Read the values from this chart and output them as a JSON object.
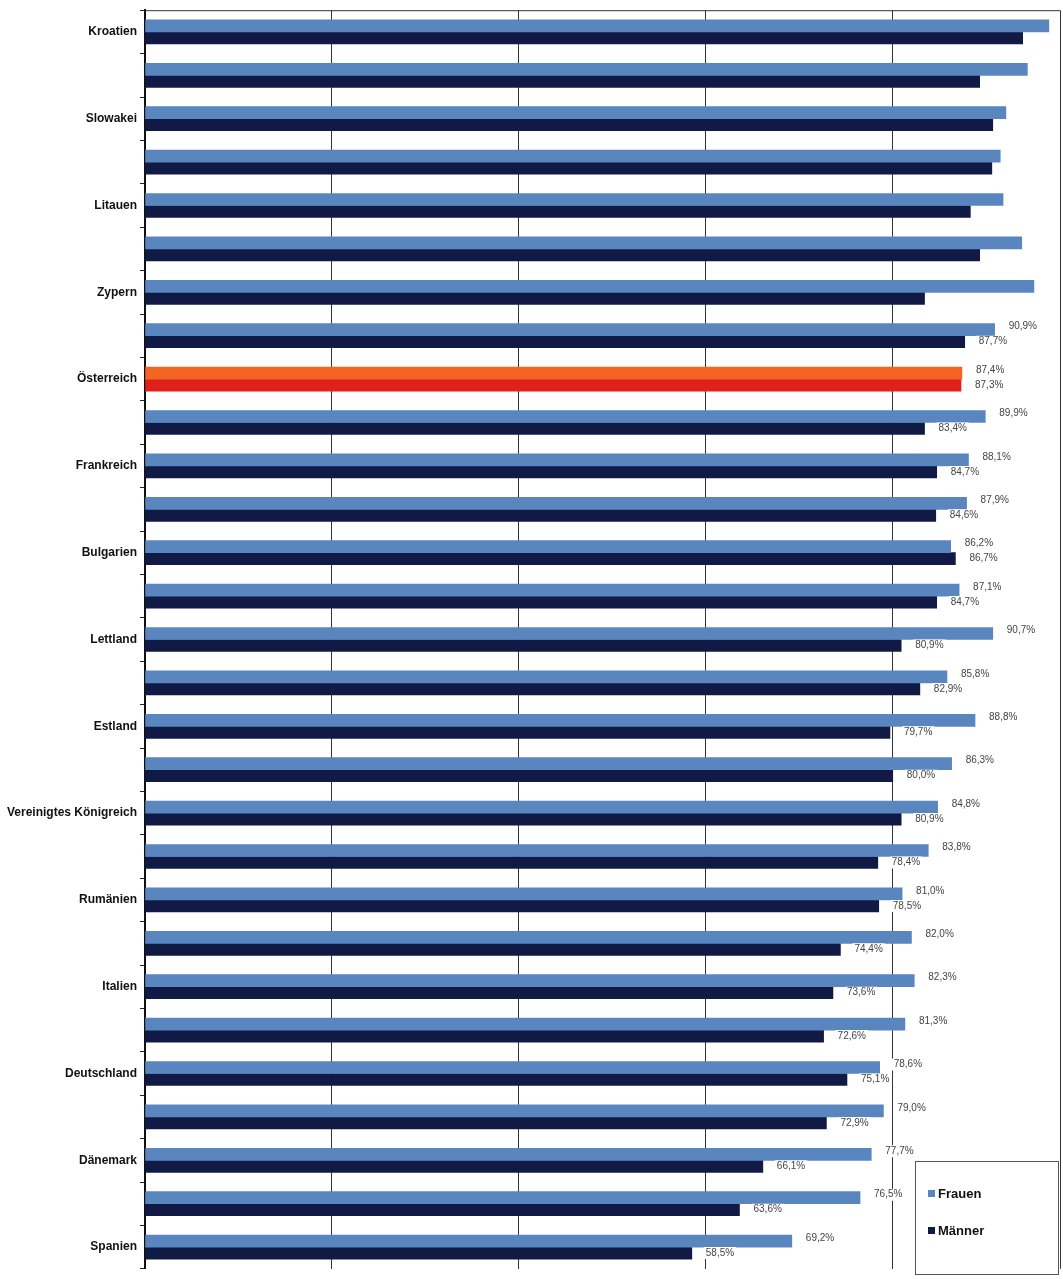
{
  "chart_data": {
    "type": "bar",
    "orientation": "horizontal",
    "categories": [
      "Kroatien",
      null,
      "Slowakei",
      null,
      "Litauen",
      null,
      "Zypern",
      null,
      "Österreich",
      null,
      "Frankreich",
      null,
      "Bulgarien",
      null,
      "Lettland",
      null,
      "Estland",
      null,
      "Vereinigtes Königreich",
      null,
      "Rumänien",
      null,
      "Italien",
      null,
      "Deutschland",
      null,
      "Dänemark",
      null,
      "Spanien"
    ],
    "series": [
      {
        "name": "Frauen",
        "color": "#5a86c0",
        "colors": [
          "#5a86c0",
          "#5a86c0",
          "#5a86c0",
          "#5a86c0",
          "#5a86c0",
          "#5a86c0",
          "#5a86c0",
          "#5a86c0",
          "#f26522",
          "#5a86c0",
          "#5a86c0",
          "#5a86c0",
          "#5a86c0",
          "#5a86c0",
          "#5a86c0",
          "#5a86c0",
          "#5a86c0",
          "#5a86c0",
          "#5a86c0",
          "#5a86c0",
          "#5a86c0",
          "#5a86c0",
          "#5a86c0",
          "#5a86c0",
          "#5a86c0",
          "#5a86c0",
          "#5a86c0",
          "#5a86c0",
          "#5a86c0"
        ],
        "values": [
          96.7,
          94.4,
          92.1,
          91.5,
          91.8,
          93.8,
          95.1,
          90.9,
          87.4,
          89.9,
          88.1,
          87.9,
          86.2,
          87.1,
          90.7,
          85.8,
          88.8,
          86.3,
          84.8,
          83.8,
          81.0,
          82.0,
          82.3,
          81.3,
          78.6,
          79.0,
          77.7,
          76.5,
          69.2
        ],
        "value_labels": [
          null,
          null,
          null,
          null,
          null,
          null,
          null,
          "90,9%",
          "87,4%",
          "89,9%",
          "88,1%",
          "87,9%",
          "86,2%",
          "87,1%",
          "90,7%",
          "85,8%",
          "88,8%",
          "86,3%",
          "84,8%",
          "83,8%",
          "81,0%",
          "82,0%",
          "82,3%",
          "81,3%",
          "78,6%",
          "79,0%",
          "77,7%",
          "76,5%",
          "69,2%"
        ]
      },
      {
        "name": "Männer",
        "color": "#101a45",
        "colors": [
          "#101a45",
          "#101a45",
          "#101a45",
          "#101a45",
          "#101a45",
          "#101a45",
          "#101a45",
          "#101a45",
          "#e0201b",
          "#101a45",
          "#101a45",
          "#101a45",
          "#101a45",
          "#101a45",
          "#101a45",
          "#101a45",
          "#101a45",
          "#101a45",
          "#101a45",
          "#101a45",
          "#101a45",
          "#101a45",
          "#101a45",
          "#101a45",
          "#101a45",
          "#101a45",
          "#101a45",
          "#101a45",
          "#101a45"
        ],
        "values": [
          93.9,
          89.3,
          90.7,
          90.6,
          88.3,
          89.3,
          83.4,
          87.7,
          87.3,
          83.4,
          84.7,
          84.6,
          86.7,
          84.7,
          80.9,
          82.9,
          79.7,
          80.0,
          80.9,
          78.4,
          78.5,
          74.4,
          73.6,
          72.6,
          75.1,
          72.9,
          66.1,
          63.6,
          58.5
        ],
        "value_labels": [
          null,
          null,
          null,
          null,
          null,
          null,
          null,
          "87,7%",
          "87,3%",
          "83,4%",
          "84,7%",
          "84,6%",
          "86,7%",
          "84,7%",
          "80,9%",
          "82,9%",
          "79,7%",
          "80,0%",
          "80,9%",
          "78,4%",
          "78,5%",
          "74,4%",
          "73,6%",
          "72,6%",
          "75,1%",
          "72,9%",
          "66,1%",
          "63,6%",
          "58,5%"
        ]
      }
    ],
    "xlim": [
      0,
      98
    ],
    "xticks": [
      {
        "value": 0,
        "label": null
      },
      {
        "value": 20,
        "label": null
      },
      {
        "value": 40,
        "label": null
      },
      {
        "value": 60,
        "label": null
      },
      {
        "value": 80,
        "label": null
      }
    ],
    "tick_labels": "y",
    "grid": "x",
    "legend": "bottom right"
  }
}
